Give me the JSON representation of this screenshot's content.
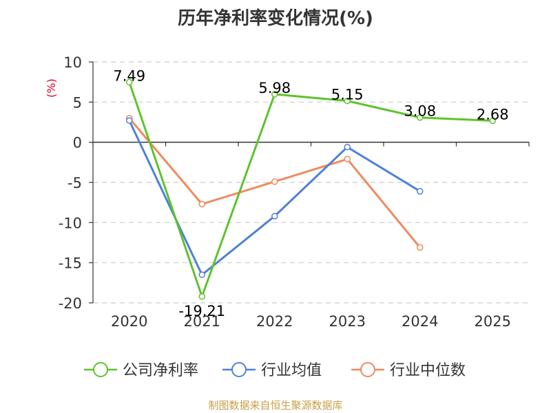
{
  "title": "历年净利率变化情况(%)",
  "source": "制图数据来自恒生聚源数据库",
  "chart_data": {
    "type": "line",
    "ylabel": "(%)",
    "ylim": [
      -20,
      10
    ],
    "yticks": [
      10,
      5,
      0,
      -5,
      -10,
      -15,
      -20
    ],
    "categories": [
      "2020",
      "2021",
      "2022",
      "2023",
      "2024",
      "2025"
    ],
    "grid": true,
    "legend": "bottom",
    "series": [
      {
        "name": "公司净利率",
        "color": "#5ec22b",
        "values": [
          7.49,
          -19.21,
          5.98,
          5.15,
          3.08,
          2.68
        ],
        "labels": [
          "7.49",
          "-19.21",
          "5.98",
          "5.15",
          "3.08",
          "2.68"
        ]
      },
      {
        "name": "行业均值",
        "color": "#4f7fdb",
        "values": [
          2.7,
          -16.5,
          -9.2,
          -0.6,
          -6.1,
          null
        ]
      },
      {
        "name": "行业中位数",
        "color": "#f08a5d",
        "values": [
          3.0,
          -7.7,
          -4.9,
          -2.1,
          -13.1,
          null
        ]
      }
    ]
  }
}
